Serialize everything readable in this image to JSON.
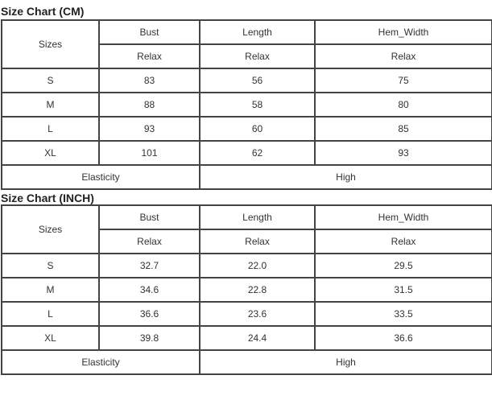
{
  "tables": [
    {
      "title": "Size Chart (CM)",
      "header": {
        "sizes": "Sizes",
        "columns": [
          "Bust",
          "Length",
          "Hem_Width"
        ],
        "sub": [
          "Relax",
          "Relax",
          "Relax"
        ]
      },
      "rows": [
        [
          "S",
          "83",
          "56",
          "75"
        ],
        [
          "M",
          "88",
          "58",
          "80"
        ],
        [
          "L",
          "93",
          "60",
          "85"
        ],
        [
          "XL",
          "101",
          "62",
          "93"
        ]
      ],
      "elasticity": {
        "label": "Elasticity",
        "value": "High"
      }
    },
    {
      "title": "Size Chart (INCH)",
      "header": {
        "sizes": "Sizes",
        "columns": [
          "Bust",
          "Length",
          "Hem_Width"
        ],
        "sub": [
          "Relax",
          "Relax",
          "Relax"
        ]
      },
      "rows": [
        [
          "S",
          "32.7",
          "22.0",
          "29.5"
        ],
        [
          "M",
          "34.6",
          "22.8",
          "31.5"
        ],
        [
          "L",
          "36.6",
          "23.6",
          "33.5"
        ],
        [
          "XL",
          "39.8",
          "24.4",
          "36.6"
        ]
      ],
      "elasticity": {
        "label": "Elasticity",
        "value": "High"
      }
    }
  ]
}
